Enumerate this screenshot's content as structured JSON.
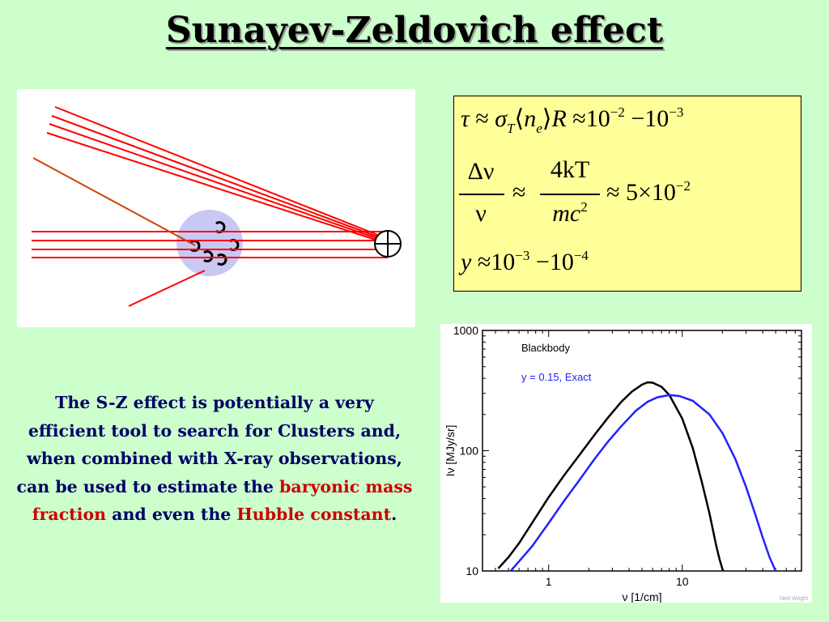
{
  "slide": {
    "title": "Sunayev-Zeldovich effect"
  },
  "equations": {
    "line1": {
      "tau": "τ",
      "approx": "≈",
      "sigma": "σ",
      "sigma_sub": "T",
      "langle": "⟨",
      "n": "n",
      "n_sub": "e",
      "rangle": "⟩",
      "R": "R",
      "ten1": "10",
      "exp1": "−2",
      "minus": "−",
      "ten2": "10",
      "exp2": "−3"
    },
    "line2": {
      "num1": "Δν",
      "den1": "ν",
      "approx1": "≈",
      "num2": "4kT",
      "den2": "mc",
      "den2_exp": "2",
      "approx2": "≈",
      "coef": "5×10",
      "exp": "−2"
    },
    "line3": {
      "y": "y",
      "approx": "≈",
      "ten1": "10",
      "exp1": "−3",
      "minus": "−",
      "ten2": "10",
      "exp2": "−4"
    }
  },
  "paragraph": {
    "part1": "The S-Z effect is potentially a very efficient tool to search for Clusters and, when combined with X-ray observations, can be used to estimate the ",
    "highlight1": "baryonic mass fraction",
    "part2": " and even the ",
    "highlight2": "Hubble constant",
    "part3": "."
  },
  "chart_data": {
    "type": "line",
    "xlabel": "ν [1/cm]",
    "ylabel": "Iν [MJy/sr]",
    "xscale": "log",
    "yscale": "log",
    "xlim": [
      0.32,
      78
    ],
    "ylim": [
      10,
      1000
    ],
    "xticks": [
      "1",
      "10"
    ],
    "yticks": [
      "10",
      "100",
      "1000"
    ],
    "credit": "Ned Wright",
    "legend_placement": "top-left",
    "series": [
      {
        "name": "Blackbody",
        "color": "#000000",
        "x": [
          0.42,
          0.5,
          0.6,
          0.75,
          1.0,
          1.3,
          1.7,
          2.2,
          2.8,
          3.5,
          4.2,
          5.0,
          5.5,
          6.0,
          7.0,
          8.0,
          10.0,
          12.0,
          14.0,
          16.0,
          18.0,
          19.0,
          20.2
        ],
        "y": [
          10.5,
          13,
          17,
          25,
          41,
          62,
          92,
          135,
          190,
          255,
          310,
          355,
          370,
          368,
          340,
          290,
          185,
          105,
          55,
          30,
          16,
          12.5,
          10
        ]
      },
      {
        "name": "y = 0.15, Exact",
        "color": "#2222ff",
        "x": [
          0.52,
          0.6,
          0.75,
          1.0,
          1.3,
          1.7,
          2.2,
          2.8,
          3.5,
          4.5,
          5.5,
          6.5,
          8.0,
          9.5,
          12.0,
          16.0,
          20.0,
          25.0,
          30.0,
          35.0,
          40.0,
          45.0,
          50.0
        ],
        "y": [
          10,
          12,
          16,
          25,
          38,
          57,
          85,
          120,
          160,
          215,
          255,
          278,
          290,
          285,
          260,
          200,
          140,
          85,
          50,
          30,
          19,
          13,
          10
        ]
      }
    ]
  }
}
